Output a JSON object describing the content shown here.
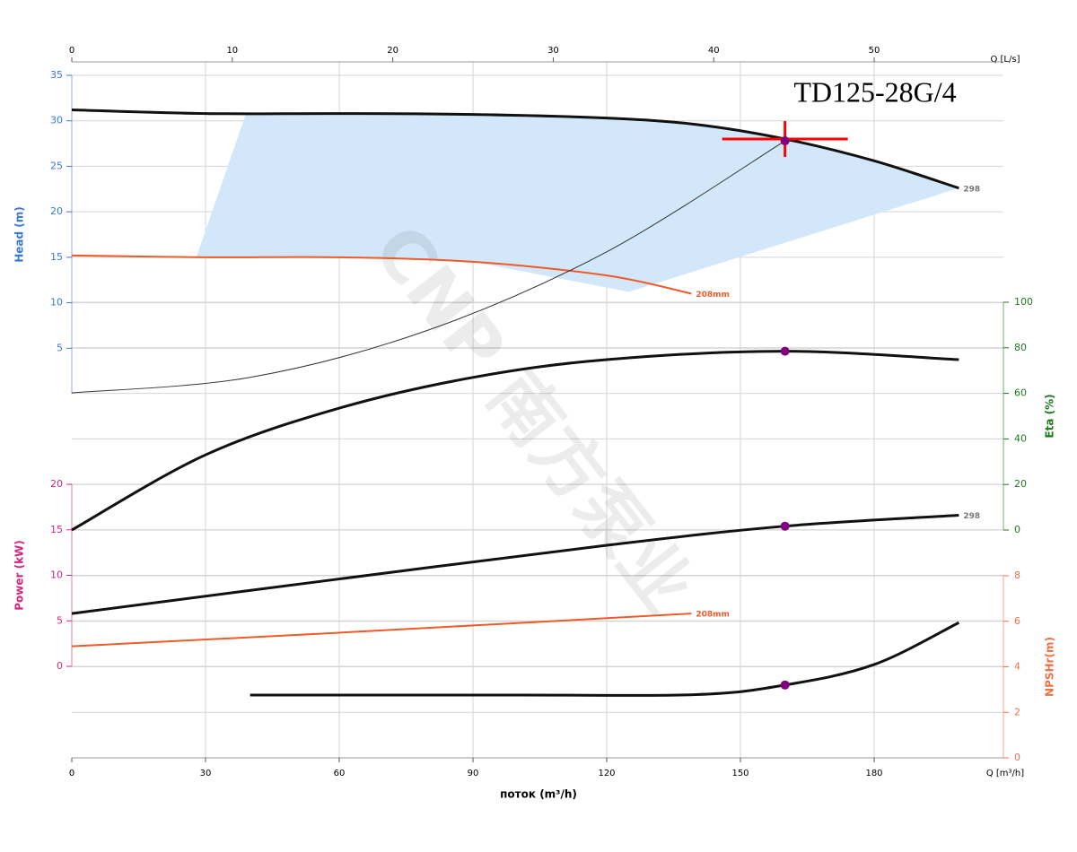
{
  "chart_data": {
    "type": "line",
    "title": "TD125-28G/4",
    "watermark": "CNP 南方泵业",
    "x_label": "поток (m³/h)",
    "x_unit_label": "Q [m³/h]",
    "x2_unit_label": "Q [L/s]",
    "xlim": [
      0,
      210
    ],
    "xticks": [
      0,
      30,
      60,
      90,
      120,
      150,
      180
    ],
    "x2lim": [
      0,
      58.33
    ],
    "x2ticks": [
      0,
      10,
      20,
      30,
      40,
      50
    ],
    "grid": true,
    "axes": {
      "head": {
        "label": "Head (m)",
        "side": "left",
        "color": "#3a78d8",
        "ylim": [
          0,
          35
        ],
        "yticks": [
          5,
          10,
          15,
          20,
          25,
          30,
          35
        ]
      },
      "eta": {
        "label": "Eta (%)",
        "side": "right",
        "color": "#1e7a1e",
        "ylim": [
          0,
          100
        ],
        "yticks": [
          0,
          20,
          40,
          60,
          80,
          100
        ]
      },
      "power": {
        "label": "Power (kW)",
        "side": "left",
        "color": "#d6247f",
        "ylim": [
          0,
          20
        ],
        "yticks": [
          0,
          5,
          10,
          15,
          20
        ]
      },
      "npshr": {
        "label": "NPSHr(m)",
        "side": "right",
        "color": "#f07048",
        "ylim": [
          0,
          8
        ],
        "yticks": [
          0,
          2,
          4,
          6,
          8
        ]
      }
    },
    "operating_range": {
      "color": "#d2e8fa",
      "x": [
        28,
        39,
        60,
        90,
        120,
        140,
        160,
        180,
        199,
        125,
        90,
        60
      ],
      "y": [
        15.1,
        30.7,
        30.8,
        30.7,
        30.3,
        29.6,
        28,
        25.6,
        22.6,
        11.2,
        14.5,
        15
      ]
    },
    "series": [
      {
        "name": "298",
        "axis": "head",
        "color": "#111111",
        "width": 3,
        "x": [
          0,
          30,
          60,
          90,
          120,
          140,
          160,
          180,
          199
        ],
        "values": [
          31.2,
          30.8,
          30.8,
          30.7,
          30.3,
          29.6,
          28,
          25.6,
          22.6
        ]
      },
      {
        "name": "208mm",
        "axis": "head",
        "color": "#f05a28",
        "width": 2,
        "x": [
          0,
          30,
          60,
          90,
          120,
          139
        ],
        "values": [
          15.2,
          15,
          15,
          14.5,
          13,
          11
        ]
      },
      {
        "axis": "head",
        "color": "#333333",
        "width": 1,
        "x": [
          0,
          40,
          80,
          120,
          160
        ],
        "values": [
          0.1,
          1.8,
          7,
          15.6,
          27.8
        ]
      },
      {
        "axis": "eta",
        "color": "#111111",
        "width": 3,
        "x": [
          0,
          30,
          60,
          90,
          120,
          160,
          199
        ],
        "values": [
          0,
          33,
          53.5,
          67,
          74.8,
          78.5,
          74.8
        ]
      },
      {
        "name": "298",
        "axis": "power",
        "color": "#111111",
        "width": 3,
        "x": [
          0,
          60,
          120,
          160,
          199
        ],
        "values": [
          5.8,
          9.6,
          13.3,
          15.4,
          16.6
        ]
      },
      {
        "name": "208mm",
        "axis": "power",
        "color": "#f05a28",
        "width": 2,
        "x": [
          0,
          60,
          139
        ],
        "values": [
          2.2,
          3.7,
          5.8
        ]
      },
      {
        "axis": "npshr",
        "color": "#111111",
        "width": 3,
        "x": [
          40,
          100,
          140,
          160,
          180,
          199
        ],
        "values": [
          2.76,
          2.76,
          2.78,
          3.2,
          4.1,
          5.94
        ]
      }
    ],
    "duty_point": {
      "x": 160,
      "head": 27.8,
      "eta": 78.5,
      "power": 15.4,
      "npshr": 3.2,
      "color": "#800080",
      "cross_color": "#ff0000"
    }
  }
}
